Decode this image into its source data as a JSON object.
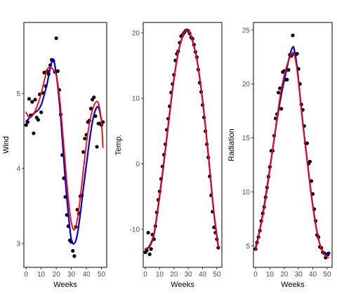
{
  "chart_data": [
    {
      "type": "scatter",
      "xlabel": "Weeks",
      "ylabel": "Wind",
      "xlim": [
        -1.5,
        53.5
      ],
      "ylim": [
        2.68,
        5.95
      ],
      "xticks": [
        0,
        10,
        20,
        30,
        40,
        50
      ],
      "yticks": [
        3,
        4,
        5
      ],
      "grid": false,
      "points": {
        "x": [
          0,
          1,
          2,
          3,
          4,
          5,
          6,
          7,
          8,
          9,
          10,
          11,
          12,
          13,
          14,
          15,
          16,
          17,
          18,
          19,
          20,
          21,
          22,
          23,
          24,
          25,
          26,
          27,
          28,
          29,
          30,
          31,
          32,
          33,
          34,
          35,
          36,
          37,
          38,
          39,
          40,
          41,
          42,
          43,
          44,
          45,
          46,
          47,
          48,
          49,
          50,
          51
        ],
        "y": [
          4.58,
          4.62,
          4.93,
          4.71,
          4.89,
          4.47,
          4.92,
          4.68,
          4.65,
          4.99,
          4.75,
          5.01,
          5.28,
          5.1,
          5.3,
          5.26,
          5.38,
          5.45,
          5.44,
          5.29,
          5.74,
          5.3,
          5.05,
          4.72,
          4.18,
          3.87,
          3.62,
          3.38,
          3.23,
          3.04,
          3.02,
          2.9,
          2.83,
          3.22,
          3.45,
          3.4,
          3.63,
          3.64,
          4.22,
          4.4,
          4.45,
          4.62,
          4.64,
          4.8,
          4.92,
          4.95,
          4.7,
          4.29,
          4.6,
          4.6,
          4.58,
          4.62
        ]
      },
      "series": [
        {
          "color": "#0000cc",
          "x": [
            0,
            2,
            4,
            6,
            8,
            10,
            12,
            14,
            16,
            18,
            20,
            22,
            24,
            26,
            28,
            30,
            32,
            34,
            36,
            38,
            40,
            42,
            44,
            46,
            48,
            50
          ],
          "y": [
            4.63,
            4.67,
            4.72,
            4.75,
            4.78,
            4.85,
            4.98,
            5.14,
            5.34,
            5.46,
            5.26,
            4.9,
            4.4,
            3.85,
            3.4,
            3.05,
            3.0,
            3.12,
            3.4,
            3.74,
            4.05,
            4.36,
            4.62,
            4.78,
            4.82,
            4.65
          ]
        },
        {
          "color": "#ff0000",
          "x": [
            0,
            2,
            4,
            6,
            8,
            10,
            12,
            14,
            16,
            18,
            20,
            22,
            24,
            26,
            28,
            30,
            32,
            34,
            36,
            38,
            40,
            42,
            44,
            46,
            48,
            50,
            51
          ],
          "y": [
            4.75,
            4.68,
            4.7,
            4.77,
            4.87,
            5.0,
            5.17,
            5.32,
            5.35,
            5.32,
            5.24,
            4.98,
            4.55,
            4.05,
            3.6,
            3.28,
            3.18,
            3.32,
            3.62,
            3.98,
            4.33,
            4.6,
            4.78,
            4.88,
            4.87,
            4.62,
            4.28
          ]
        }
      ]
    },
    {
      "type": "scatter",
      "xlabel": "Weeks",
      "ylabel": "Temp.",
      "xlim": [
        -1.5,
        53.5
      ],
      "ylim": [
        -15.8,
        21.6
      ],
      "xticks": [
        0,
        10,
        20,
        30,
        40,
        50
      ],
      "yticks": [
        -10,
        0,
        10,
        20
      ],
      "grid": false,
      "points": {
        "x": [
          0,
          1,
          2,
          3,
          4,
          5,
          6,
          7,
          8,
          9,
          10,
          11,
          12,
          13,
          14,
          15,
          16,
          17,
          18,
          19,
          20,
          21,
          22,
          23,
          24,
          25,
          26,
          27,
          28,
          29,
          30,
          31,
          32,
          33,
          34,
          35,
          36,
          37,
          38,
          39,
          40,
          41,
          42,
          43,
          44,
          45,
          46,
          47,
          48,
          49,
          50,
          51
        ],
        "y": [
          -13.5,
          -13.2,
          -10.5,
          -13.8,
          -13.0,
          -10.8,
          -11.5,
          -9.5,
          -7.4,
          -5.5,
          -4.2,
          -2.3,
          -0.4,
          1.4,
          3.0,
          5.2,
          6.9,
          8.8,
          10.9,
          12.2,
          13.6,
          15.8,
          16.8,
          17.2,
          18.5,
          19.5,
          19.7,
          20.0,
          20.3,
          20.4,
          20.3,
          19.9,
          19.3,
          19.1,
          18.2,
          17.1,
          16.3,
          14.4,
          12.4,
          11.0,
          9.0,
          7.1,
          5.0,
          3.0,
          1.0,
          -1.9,
          -4.8,
          -7.3,
          -9.7,
          -10.5,
          -11.5,
          -12.8
        ]
      },
      "series": [
        {
          "color": "#0000cc",
          "x": [
            0,
            3,
            6,
            9,
            12,
            15,
            18,
            21,
            24,
            27,
            29,
            31,
            33,
            36,
            39,
            42,
            45,
            48,
            51
          ],
          "y": [
            -13.0,
            -12.6,
            -10.8,
            -6.5,
            -1.5,
            4.0,
            9.6,
            14.5,
            18.0,
            19.9,
            20.3,
            19.9,
            18.8,
            16.0,
            11.5,
            5.8,
            -0.8,
            -7.6,
            -12.6
          ]
        },
        {
          "color": "#ff0000",
          "x": [
            0,
            3,
            6,
            9,
            12,
            15,
            18,
            21,
            24,
            27,
            29,
            31,
            33,
            36,
            39,
            42,
            45,
            48,
            51
          ],
          "y": [
            -13.1,
            -12.4,
            -10.6,
            -6.2,
            -1.2,
            4.2,
            9.8,
            14.6,
            18.1,
            20.0,
            20.4,
            20.0,
            18.9,
            16.0,
            11.4,
            5.6,
            -1.0,
            -7.8,
            -12.8
          ]
        }
      ]
    },
    {
      "type": "scatter",
      "xlabel": "Weeks",
      "ylabel": "Radiation",
      "xlim": [
        -1.5,
        53.5
      ],
      "ylim": [
        3.0,
        25.7
      ],
      "xticks": [
        0,
        10,
        20,
        30,
        40,
        50
      ],
      "yticks": [
        5,
        10,
        15,
        20,
        25
      ],
      "grid": false,
      "points": {
        "x": [
          0,
          1,
          2,
          3,
          4,
          5,
          6,
          7,
          8,
          9,
          10,
          11,
          12,
          13,
          14,
          15,
          16,
          17,
          18,
          19,
          20,
          21,
          22,
          23,
          24,
          25,
          26,
          27,
          28,
          29,
          30,
          31,
          32,
          33,
          34,
          35,
          36,
          37,
          38,
          39,
          40,
          41,
          42,
          43,
          44,
          45,
          46,
          47,
          48,
          49,
          50,
          51
        ],
        "y": [
          4.7,
          5.3,
          5.8,
          6.4,
          7.3,
          8.0,
          8.6,
          9.5,
          10.4,
          11.4,
          12.3,
          13.8,
          13.8,
          15.2,
          16.8,
          17.2,
          19.2,
          19.6,
          17.7,
          21.1,
          21.2,
          20.4,
          20.4,
          21.3,
          22.7,
          22.6,
          24.5,
          22.8,
          22.7,
          22.8,
          21.4,
          20.0,
          18.1,
          17.6,
          16.1,
          14.5,
          14.5,
          12.6,
          12.8,
          11.0,
          9.8,
          8.4,
          7.3,
          6.0,
          5.8,
          4.9,
          4.8,
          4.4,
          4.3,
          3.9,
          4.2,
          4.3
        ]
      },
      "series": [
        {
          "color": "#0000cc",
          "x": [
            0,
            3,
            6,
            9,
            12,
            15,
            18,
            21,
            24,
            26,
            27,
            29,
            31,
            33,
            36,
            39,
            42,
            45,
            48,
            51
          ],
          "y": [
            4.8,
            6.5,
            8.7,
            11.3,
            14.0,
            16.7,
            19.0,
            20.9,
            22.7,
            23.4,
            23.2,
            21.6,
            19.0,
            16.4,
            13.0,
            9.7,
            7.0,
            5.1,
            4.3,
            4.1
          ]
        },
        {
          "color": "#ff0000",
          "x": [
            0,
            3,
            6,
            9,
            12,
            15,
            18,
            21,
            24,
            26,
            27,
            29,
            31,
            33,
            36,
            39,
            42,
            45,
            48,
            51
          ],
          "y": [
            4.6,
            6.4,
            8.5,
            11.1,
            14.0,
            16.9,
            19.5,
            21.3,
            22.5,
            22.9,
            22.8,
            21.3,
            18.9,
            16.3,
            12.9,
            9.6,
            6.9,
            5.1,
            4.2,
            3.9
          ]
        }
      ]
    }
  ]
}
